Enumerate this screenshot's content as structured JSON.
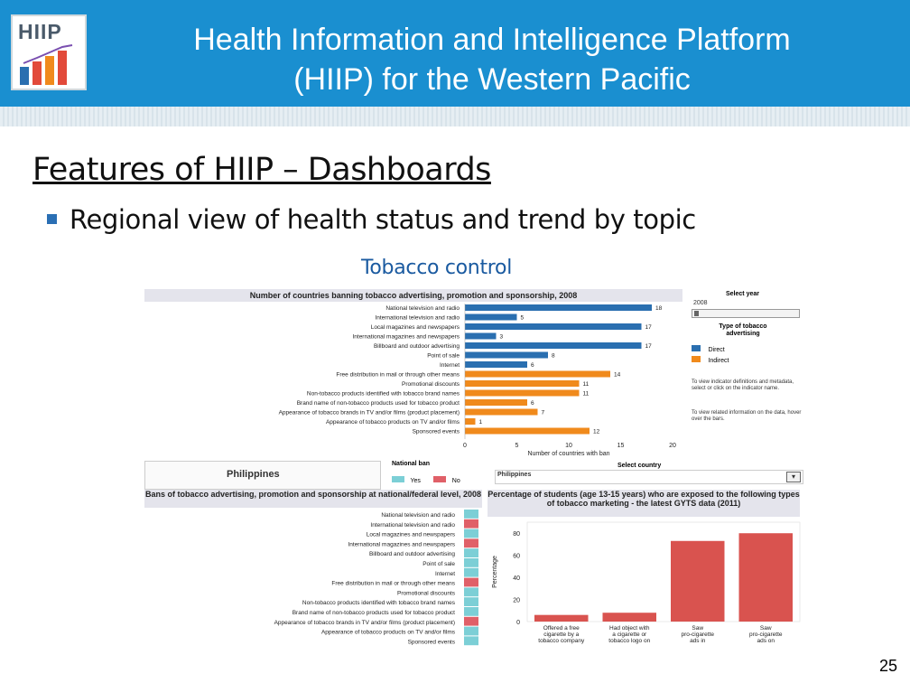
{
  "header": {
    "logo_text": "HIIP",
    "title_line1": "Health Information and Intelligence Platform",
    "title_line2": "(HIIP)  for the Western Pacific"
  },
  "slide": {
    "title": "Features of HIIP – Dashboards",
    "bullet": "Regional view of health status and trend by topic",
    "subhead": "Tobacco control",
    "page_number": "25"
  },
  "top_chart": {
    "title": "Number of countries banning tobacco advertising, promotion and sponsorship, 2008",
    "xlabel": "Number of countries with ban",
    "select_year_label": "Select year",
    "year_value": "2008",
    "type_legend_title": "Type of tobacco advertising",
    "legend": [
      {
        "name": "Direct",
        "color": "#2a6fb0"
      },
      {
        "name": "Indirect",
        "color": "#f08a1c"
      }
    ],
    "info1": "To view indicator definitions and metadata, select or click on the indicator name.",
    "info2": "To view related information on the data, hover over the bars."
  },
  "philippines": {
    "country": "Philippines",
    "national_ban_title": "National ban",
    "ban_legend": [
      {
        "name": "Yes",
        "color": "#7ccfd6"
      },
      {
        "name": "No",
        "color": "#e06068"
      }
    ],
    "bans_title": "Bans of tobacco advertising, promotion and sponsorship at national/federal level, 2008",
    "select_country_label": "Select country",
    "select_country_value": "Philippines",
    "pct_title": "Percentage of students (age 13-15 years) who are exposed to the following types of tobacco marketing - the latest GYTS data (2011)",
    "pct_ylabel": "Percentage"
  },
  "chart_data": [
    {
      "type": "bar",
      "orientation": "horizontal",
      "title": "Number of countries banning tobacco advertising, promotion and sponsorship, 2008",
      "xlabel": "Number of countries with ban",
      "xlim": [
        0,
        20
      ],
      "xticks": [
        0,
        5,
        10,
        15,
        20
      ],
      "categories": [
        "National television and radio",
        "International television and radio",
        "Local magazines and newspapers",
        "International magazines and newspapers",
        "Billboard and outdoor advertising",
        "Point of sale",
        "Internet",
        "Free distribution in mail or through other means",
        "Promotional discounts",
        "Non-tobacco products identified with tobacco brand names",
        "Brand name of non-tobacco products used for tobacco product",
        "Appearance of tobacco brands in TV and/or films (product placement)",
        "Appearance of tobacco products on TV and/or films",
        "Sponsored events"
      ],
      "values": [
        18,
        5,
        17,
        3,
        17,
        8,
        6,
        14,
        11,
        11,
        6,
        7,
        1,
        12
      ],
      "groups": [
        "Direct",
        "Direct",
        "Direct",
        "Direct",
        "Direct",
        "Direct",
        "Direct",
        "Indirect",
        "Indirect",
        "Indirect",
        "Indirect",
        "Indirect",
        "Indirect",
        "Indirect"
      ]
    },
    {
      "type": "table",
      "title": "Bans of tobacco advertising, promotion and sponsorship at national/federal level, 2008",
      "categories": [
        "National television and radio",
        "International television and radio",
        "Local magazines and newspapers",
        "International magazines and newspapers",
        "Billboard and outdoor advertising",
        "Point of sale",
        "Internet",
        "Free distribution in mail or through other means",
        "Promotional discounts",
        "Non-tobacco products identified with tobacco brand names",
        "Brand name of non-tobacco products used for tobacco product",
        "Appearance of tobacco brands in TV and/or films (product placement)",
        "Appearance of tobacco products on TV and/or films",
        "Sponsored events"
      ],
      "values": [
        "Yes",
        "No",
        "Yes",
        "No",
        "Yes",
        "Yes",
        "Yes",
        "No",
        "Yes",
        "Yes",
        "Yes",
        "No",
        "Yes",
        "Yes"
      ]
    },
    {
      "type": "bar",
      "title": "Percentage of students (age 13-15 years) who are exposed to the following types of tobacco marketing - the latest GYTS data (2011)",
      "ylabel": "Percentage",
      "ylim": [
        0,
        90
      ],
      "yticks": [
        0,
        20,
        40,
        60,
        80
      ],
      "categories": [
        "Offered a free cigarette by a tobacco company",
        "Had object with a cigarette or tobacco logo on",
        "Saw pro-cigarette ads in newspapers or magazines",
        "Saw pro-cigarette ads on billboards, in outdoor"
      ],
      "values": [
        6,
        8,
        73,
        80
      ]
    }
  ]
}
